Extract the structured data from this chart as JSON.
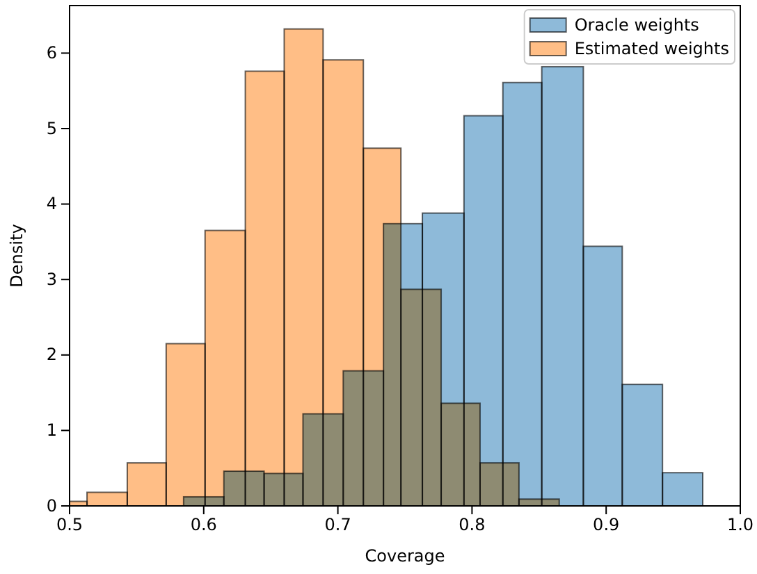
{
  "chart_data": {
    "type": "histogram",
    "xlabel": "Coverage",
    "ylabel": "Density",
    "xlim": [
      0.5,
      1.0
    ],
    "xticks": [
      0.5,
      0.6,
      0.7,
      0.8,
      0.9,
      {
        "value": 1.0,
        "label": "1.0"
      }
    ],
    "ylim": [
      0,
      6.63
    ],
    "bins": [
      0.585,
      0.615,
      0.645,
      0.674,
      0.704,
      0.734,
      0.763,
      0.794,
      0.823,
      0.852,
      0.883,
      0.912,
      0.942,
      0.972
    ],
    "yticks": [
      0,
      1,
      2,
      3,
      4,
      5,
      6
    ],
    "grid": false,
    "legend": "top right",
    "series": [
      {
        "name": "Oracle weights",
        "type": "histogram",
        "color": "#8ebad9",
        "values": [
          0.12,
          0.46,
          0.43,
          1.22,
          1.79,
          3.74,
          3.88,
          5.17,
          5.61,
          5.82,
          3.44,
          1.61,
          0.44
        ]
      },
      {
        "name": "Estimated weights",
        "type": "histogram",
        "color": "#ffbe86",
        "bins": [
          0.5,
          0.513,
          0.543,
          0.572,
          0.601,
          0.631,
          0.66,
          0.689,
          0.719,
          0.747,
          0.777,
          0.806,
          0.835,
          0.865
        ],
        "values": [
          0.06,
          0.18,
          0.57,
          2.15,
          3.65,
          5.76,
          6.32,
          5.91,
          4.74,
          2.87,
          1.36,
          0.57,
          0.09
        ]
      }
    ]
  }
}
